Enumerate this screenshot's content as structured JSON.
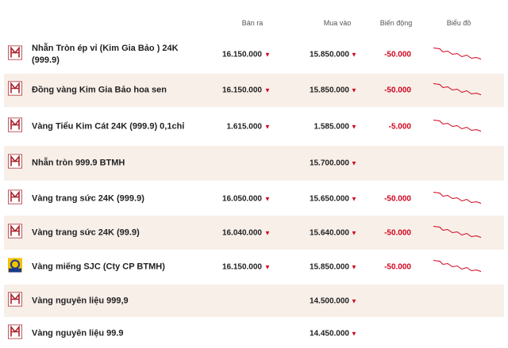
{
  "table": {
    "headers": [
      "Bán ra",
      "Mua vào",
      "Biến động",
      "Biểu đồ"
    ],
    "rows": [
      {
        "name": "Nhẫn Tròn ép vỉ (Kim Gia Bảo ) 24K (999.9)",
        "sell": "16.150.000",
        "buy": "15.850.000",
        "change": "-50.000"
      },
      {
        "name": "Đồng vàng Kim Gia Bảo hoa sen",
        "sell": "16.150.000",
        "buy": "15.850.000",
        "change": "-50.000"
      },
      {
        "name": "Vàng Tiểu Kim Cát 24K (999.9) 0,1chỉ",
        "sell": "1.615.000",
        "buy": "1.585.000",
        "change": "-5.000"
      },
      {
        "name": "Nhẫn tròn 999.9 BTMH",
        "buy": "15.700.000"
      },
      {
        "name": "Vàng trang sức 24K (999.9)",
        "sell": "16.050.000",
        "buy": "15.650.000",
        "change": "-50.000"
      },
      {
        "name": "Vàng trang sức 24K (99.9)",
        "sell": "16.040.000",
        "buy": "15.640.000",
        "change": "-50.000"
      },
      {
        "name": "Vàng miếng SJC (Cty CP BTMH)",
        "sell": "16.150.000",
        "buy": "15.850.000",
        "change": "-50.000"
      },
      {
        "name": "Vàng nguyên liệu 999,9",
        "buy": "14.500.000"
      },
      {
        "name": "Vàng nguyên liệu 99.9",
        "buy": "14.450.000"
      }
    ]
  }
}
